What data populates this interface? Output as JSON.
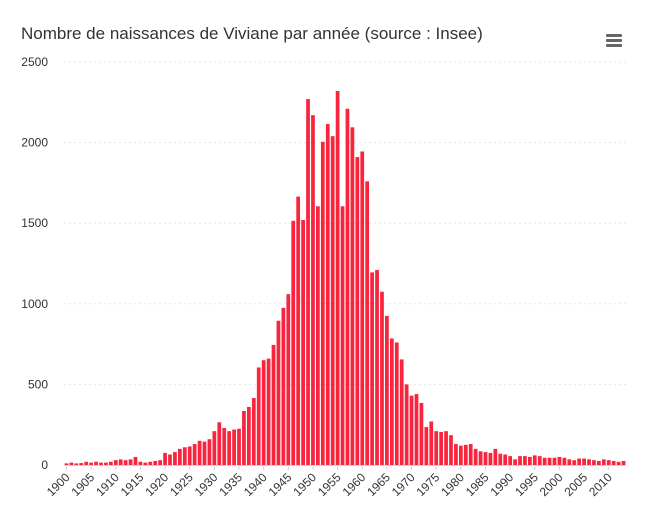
{
  "chart_data": {
    "type": "bar",
    "title": "Nombre de naissances de Viviane par année (source : Insee)",
    "xlabel": "",
    "ylabel": "",
    "ylim": [
      0,
      2500
    ],
    "yticks": [
      0,
      500,
      1000,
      1500,
      2000,
      2500
    ],
    "x_start": 1900,
    "x_end": 2013,
    "xticks": [
      1900,
      1905,
      1910,
      1915,
      1920,
      1925,
      1930,
      1935,
      1940,
      1945,
      1950,
      1955,
      1960,
      1965,
      1970,
      1975,
      1980,
      1985,
      1990,
      1995,
      2000,
      2005,
      2010
    ],
    "bar_color": "#f7253e",
    "grid": true,
    "legend": "none",
    "values": [
      10,
      15,
      10,
      12,
      20,
      15,
      20,
      15,
      15,
      20,
      30,
      35,
      30,
      35,
      50,
      20,
      15,
      20,
      25,
      30,
      75,
      65,
      80,
      100,
      110,
      115,
      130,
      150,
      145,
      160,
      210,
      265,
      230,
      210,
      220,
      225,
      335,
      360,
      415,
      605,
      650,
      660,
      745,
      895,
      975,
      1060,
      1515,
      1665,
      1520,
      2270,
      2170,
      1605,
      2005,
      2115,
      2040,
      2320,
      1605,
      2210,
      2095,
      1910,
      1945,
      1760,
      1195,
      1210,
      1075,
      925,
      785,
      760,
      655,
      500,
      430,
      440,
      385,
      235,
      270,
      210,
      205,
      210,
      185,
      130,
      120,
      125,
      130,
      100,
      85,
      80,
      75,
      100,
      70,
      65,
      55,
      35,
      55,
      55,
      50,
      60,
      55,
      45,
      45,
      45,
      50,
      45,
      35,
      30,
      40,
      40,
      35,
      30,
      25,
      35,
      30,
      25,
      20,
      25
    ]
  },
  "ui": {
    "menu_icon": "hamburger-menu-icon"
  }
}
